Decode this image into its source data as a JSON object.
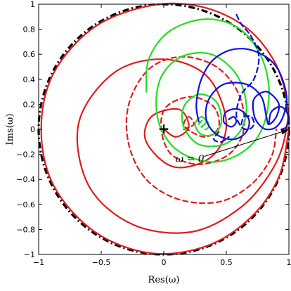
{
  "chart_data": {
    "type": "line",
    "xlabel": "Res(ω)",
    "ylabel": "Ims(ω)",
    "xlim": [
      -1,
      1
    ],
    "ylim": [
      -1,
      1
    ],
    "xticks": [
      "−1",
      "−0.5",
      "0",
      "0.5",
      "1"
    ],
    "yticks": [
      "1",
      "0.8",
      "0.6",
      "0.4",
      "0.2",
      "0",
      "−0.2",
      "−0.4",
      "−0.6",
      "−0.8",
      "−1"
    ],
    "xtick_values": [
      -1,
      -0.5,
      0,
      0.5,
      1
    ],
    "ytick_values": [
      1,
      0.8,
      0.6,
      0.4,
      0.2,
      0,
      -0.2,
      -0.4,
      -0.6,
      -0.8,
      -1
    ],
    "grid": false,
    "annotation": {
      "text": "ω = 0",
      "arrow_target": [
        1.0,
        0.0
      ],
      "text_position": [
        0.38,
        -0.25
      ]
    },
    "marker": {
      "symbol": "+",
      "x": 0,
      "y": 0
    },
    "colors": {
      "red": "#e31a1c",
      "green": "#22dd22",
      "blue": "#1010dd",
      "black": "#000000"
    },
    "series": [
      {
        "color": "black",
        "style": "dashdot",
        "points": [
          [
            1,
            0
          ],
          [
            0.866,
            0.5
          ],
          [
            0.5,
            0.866
          ],
          [
            0,
            1
          ],
          [
            -0.5,
            0.866
          ],
          [
            -0.866,
            0.5
          ],
          [
            -1,
            0
          ],
          [
            -0.866,
            -0.5
          ],
          [
            -0.5,
            -0.866
          ],
          [
            0,
            -1
          ],
          [
            0.5,
            -0.866
          ],
          [
            0.866,
            -0.5
          ],
          [
            1,
            0
          ]
        ]
      },
      {
        "color": "red",
        "style": "solid",
        "points": [
          [
            0,
            0
          ],
          [
            0.1,
            -0.06
          ],
          [
            0.2,
            0.02
          ],
          [
            0.12,
            0.16
          ],
          [
            -0.1,
            0.1
          ],
          [
            -0.14,
            -0.1
          ],
          [
            0.08,
            -0.3
          ],
          [
            0.38,
            -0.22
          ],
          [
            0.5,
            0.05
          ],
          [
            0.35,
            0.42
          ],
          [
            0,
            0.56
          ],
          [
            -0.4,
            0.45
          ],
          [
            -0.68,
            0.05
          ],
          [
            -0.6,
            -0.45
          ],
          [
            -0.25,
            -0.76
          ],
          [
            0.22,
            -0.82
          ],
          [
            0.62,
            -0.62
          ],
          [
            0.88,
            -0.3
          ],
          [
            0.98,
            0
          ],
          [
            0.98,
            0.25
          ],
          [
            0.88,
            0.55
          ],
          [
            0.65,
            0.82
          ],
          [
            0.3,
            0.98
          ],
          [
            -0.1,
            0.99
          ],
          [
            -0.55,
            0.82
          ],
          [
            -0.88,
            0.45
          ],
          [
            -0.98,
            0
          ],
          [
            -0.88,
            -0.45
          ],
          [
            -0.55,
            -0.82
          ],
          [
            -0.1,
            -0.99
          ],
          [
            0.35,
            -0.93
          ],
          [
            0.7,
            -0.7
          ],
          [
            0.92,
            -0.38
          ],
          [
            1,
            0
          ]
        ]
      },
      {
        "color": "red",
        "style": "dashed",
        "points": [
          [
            0.16,
            0
          ],
          [
            0.24,
            0.04
          ],
          [
            0.2,
            0.1
          ],
          [
            0.16,
            0.04
          ],
          [
            0.22,
            -0.02
          ],
          [
            0.34,
            -0.06
          ],
          [
            0.44,
            0.02
          ],
          [
            0.4,
            0.18
          ],
          [
            0.22,
            0.26
          ],
          [
            0.02,
            0.18
          ],
          [
            -0.02,
            0
          ],
          [
            0.06,
            -0.2
          ],
          [
            0.28,
            -0.28
          ],
          [
            0.52,
            -0.2
          ],
          [
            0.64,
            0
          ],
          [
            0.6,
            0.28
          ],
          [
            0.42,
            0.5
          ],
          [
            0.14,
            0.58
          ],
          [
            -0.12,
            0.48
          ],
          [
            -0.28,
            0.2
          ],
          [
            -0.28,
            -0.12
          ],
          [
            -0.14,
            -0.4
          ],
          [
            0.12,
            -0.56
          ],
          [
            0.44,
            -0.58
          ],
          [
            0.7,
            -0.44
          ],
          [
            0.86,
            -0.22
          ],
          [
            0.9,
            0
          ]
        ]
      },
      {
        "color": "green",
        "style": "solid",
        "points": [
          [
            0.3,
            0.02
          ],
          [
            0.34,
            0.06
          ],
          [
            0.3,
            0.1
          ],
          [
            0.25,
            0.04
          ],
          [
            0.3,
            -0.04
          ],
          [
            0.4,
            -0.04
          ],
          [
            0.46,
            0.06
          ],
          [
            0.42,
            0.22
          ],
          [
            0.28,
            0.28
          ],
          [
            0.16,
            0.18
          ],
          [
            0.16,
            0.02
          ],
          [
            0.28,
            -0.12
          ],
          [
            0.48,
            -0.12
          ],
          [
            0.62,
            0
          ],
          [
            0.66,
            0.2
          ],
          [
            0.58,
            0.44
          ],
          [
            0.38,
            0.6
          ],
          [
            0.14,
            0.58
          ],
          [
            -0.02,
            0.42
          ],
          [
            -0.06,
            0.18
          ],
          [
            0,
            -0.04
          ],
          [
            0.16,
            -0.2
          ],
          [
            0.42,
            -0.26
          ],
          [
            0.66,
            -0.16
          ],
          [
            0.8,
            0.04
          ],
          [
            0.84,
            0.34
          ],
          [
            0.76,
            0.62
          ],
          [
            0.58,
            0.82
          ],
          [
            0.32,
            0.88
          ],
          [
            0.04,
            0.78
          ],
          [
            -0.12,
            0.56
          ],
          [
            -0.14,
            0.3
          ]
        ]
      },
      {
        "color": "green",
        "style": "dashed",
        "points": [
          [
            0.28,
            0.04
          ],
          [
            0.32,
            0.08
          ],
          [
            0.36,
            0.04
          ],
          [
            0.34,
            0
          ],
          [
            0.3,
            0.02
          ]
        ]
      },
      {
        "color": "blue",
        "style": "solid",
        "points": [
          [
            0.52,
            0.08
          ],
          [
            0.56,
            0.1
          ],
          [
            0.58,
            0.06
          ],
          [
            0.54,
            0.02
          ],
          [
            0.48,
            0.06
          ],
          [
            0.5,
            0.14
          ],
          [
            0.6,
            0.16
          ],
          [
            0.68,
            0.08
          ],
          [
            0.66,
            -0.02
          ],
          [
            0.56,
            -0.08
          ],
          [
            0.42,
            -0.04
          ],
          [
            0.34,
            0.08
          ],
          [
            0.36,
            0.24
          ],
          [
            0.48,
            0.36
          ],
          [
            0.66,
            0.36
          ],
          [
            0.78,
            0.26
          ],
          [
            0.82,
            0.1
          ],
          [
            0.84,
            0.04
          ],
          [
            0.9,
            0.1
          ],
          [
            0.92,
            0.2
          ],
          [
            0.86,
            0.28
          ],
          [
            0.8,
            0.3
          ],
          [
            0.72,
            0.24
          ],
          [
            0.72,
            0.12
          ],
          [
            0.76,
            0.04
          ],
          [
            0.82,
            0
          ],
          [
            0.9,
            0.02
          ],
          [
            0.96,
            0.12
          ],
          [
            0.98,
            0.28
          ],
          [
            0.9,
            0.5
          ],
          [
            0.74,
            0.62
          ],
          [
            0.56,
            0.64
          ],
          [
            0.4,
            0.56
          ],
          [
            0.3,
            0.4
          ],
          [
            0.26,
            0.2
          ],
          [
            0.28,
            0.06
          ]
        ]
      },
      {
        "color": "blue",
        "style": "solid",
        "points": [
          [
            0.84,
            0.04
          ],
          [
            0.86,
            0.14
          ],
          [
            0.94,
            0.18
          ],
          [
            1,
            0.1
          ],
          [
            0.98,
            0.02
          ],
          [
            0.94,
            0
          ]
        ]
      },
      {
        "color": "blue",
        "style": "dashed",
        "points": [
          [
            0.62,
            0.04
          ],
          [
            0.64,
            0.1
          ],
          [
            0.7,
            0.1
          ],
          [
            0.72,
            0.04
          ],
          [
            0.68,
            0
          ],
          [
            0.62,
            0.02
          ],
          [
            0.58,
            0.12
          ],
          [
            0.62,
            0.28
          ],
          [
            0.72,
            0.4
          ],
          [
            0.76,
            0.58
          ],
          [
            0.7,
            0.74
          ],
          [
            0.62,
            0.84
          ],
          [
            0.58,
            0.92
          ]
        ]
      },
      {
        "color": "blue",
        "style": "dashed",
        "points": [
          [
            0.44,
            -0.02
          ],
          [
            0.4,
            -0.08
          ],
          [
            0.46,
            -0.1
          ],
          [
            0.52,
            -0.06
          ]
        ]
      }
    ]
  }
}
